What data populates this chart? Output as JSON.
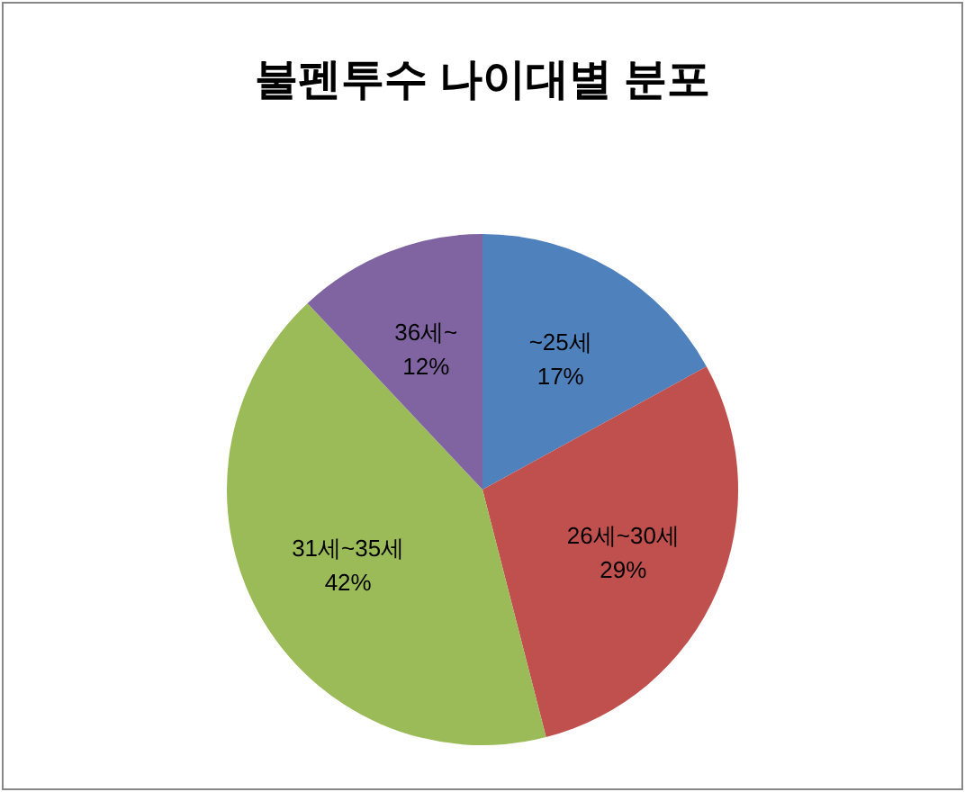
{
  "chart_data": {
    "type": "pie",
    "title": "불펜투수 나이대별 분포",
    "categories": [
      "~25세",
      "26세~30세",
      "31세~35세",
      "36세~"
    ],
    "values": [
      17,
      29,
      42,
      12
    ],
    "colors": [
      "#4f81bd",
      "#c0504d",
      "#9bbb59",
      "#8064a2"
    ],
    "value_labels": [
      "17%",
      "29%",
      "42%",
      "12%"
    ]
  }
}
